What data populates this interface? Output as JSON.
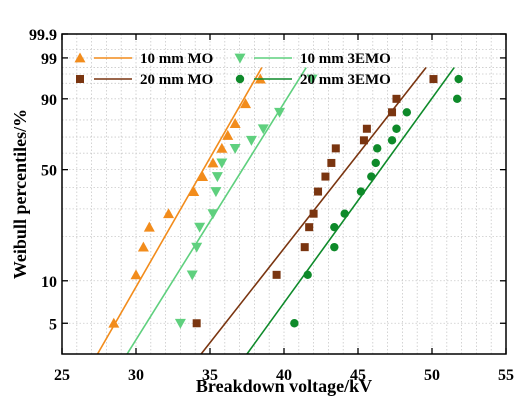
{
  "chart_data": {
    "type": "scatter",
    "title": "",
    "xlabel": "Breakdown voltage/kV",
    "ylabel": "Weibull percentiles/%",
    "xlim": [
      25,
      55
    ],
    "ylim": [
      3,
      99.9
    ],
    "y_scale": "weibull",
    "grid": true,
    "legend_position": "top",
    "x_ticks": [
      "25",
      "30",
      "35",
      "40",
      "45",
      "50",
      "55"
    ],
    "y_ticks": [
      "5",
      "10",
      "50",
      "90",
      "99",
      "99.9"
    ],
    "series": [
      {
        "name": "10 mm MO",
        "marker": "triangle-up",
        "color": "#f28c1c",
        "points": [
          [
            28.5,
            5
          ],
          [
            30.0,
            11
          ],
          [
            30.5,
            17
          ],
          [
            30.9,
            23
          ],
          [
            32.2,
            28
          ],
          [
            33.9,
            38
          ],
          [
            34.5,
            46
          ],
          [
            35.2,
            54
          ],
          [
            35.8,
            63
          ],
          [
            36.2,
            71
          ],
          [
            36.7,
            78
          ],
          [
            37.4,
            88
          ],
          [
            38.4,
            96
          ]
        ],
        "fit_line": [
          [
            27.4,
            3
          ],
          [
            38.5,
            98
          ]
        ]
      },
      {
        "name": "10 mm 3EMO",
        "marker": "triangle-down",
        "color": "#5fd07e",
        "points": [
          [
            33.0,
            5
          ],
          [
            33.8,
            11
          ],
          [
            34.1,
            17
          ],
          [
            34.3,
            23
          ],
          [
            35.2,
            28
          ],
          [
            35.4,
            38
          ],
          [
            35.5,
            46
          ],
          [
            35.8,
            54
          ],
          [
            36.7,
            63
          ],
          [
            37.8,
            68
          ],
          [
            38.6,
            75
          ],
          [
            39.7,
            84
          ],
          [
            41.9,
            96
          ]
        ],
        "fit_line": [
          [
            29.4,
            3
          ],
          [
            41.5,
            98
          ]
        ]
      },
      {
        "name": "20 mm MO",
        "marker": "square",
        "color": "#7a3510",
        "points": [
          [
            34.1,
            5
          ],
          [
            39.5,
            11
          ],
          [
            41.4,
            17
          ],
          [
            41.7,
            23
          ],
          [
            42.0,
            28
          ],
          [
            42.3,
            38
          ],
          [
            42.8,
            46
          ],
          [
            43.2,
            54
          ],
          [
            43.5,
            63
          ],
          [
            45.4,
            68
          ],
          [
            45.6,
            75
          ],
          [
            47.3,
            84
          ],
          [
            47.6,
            90
          ],
          [
            50.1,
            96
          ]
        ],
        "fit_line": [
          [
            34.4,
            3
          ],
          [
            49.6,
            98
          ]
        ]
      },
      {
        "name": "20 mm 3EMO",
        "marker": "circle",
        "color": "#0e8a2a",
        "points": [
          [
            40.7,
            5
          ],
          [
            41.6,
            11
          ],
          [
            43.4,
            17
          ],
          [
            43.4,
            23
          ],
          [
            44.1,
            28
          ],
          [
            45.2,
            38
          ],
          [
            45.9,
            46
          ],
          [
            46.2,
            54
          ],
          [
            46.3,
            63
          ],
          [
            47.3,
            68
          ],
          [
            47.6,
            75
          ],
          [
            48.3,
            84
          ],
          [
            51.7,
            90
          ],
          [
            51.8,
            96
          ]
        ],
        "fit_line": [
          [
            37.5,
            3
          ],
          [
            51.5,
            98
          ]
        ]
      }
    ]
  }
}
